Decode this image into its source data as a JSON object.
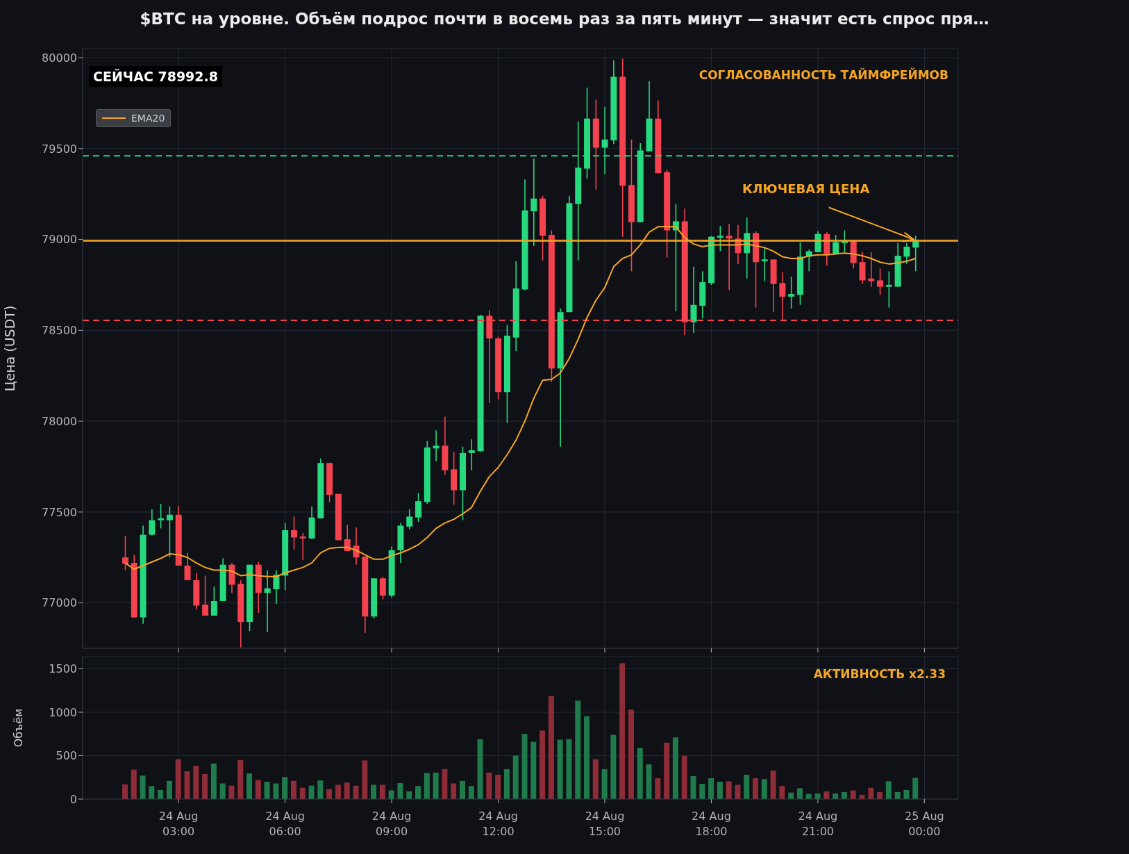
{
  "chart_data": [
    {
      "type": "candlestick",
      "title": "$BTC на уровне. Объём подрос почти в восемь раз за пять минут — значит есть спрос пря…",
      "ylabel": "Цена (USDT)",
      "x": [
        "--08-24T01:30",
        "--08-24T01:45",
        "--08-24T02:00",
        "--08-24T02:15",
        "--08-24T02:30",
        "--08-24T02:45",
        "--08-24T03:00",
        "--08-24T03:15",
        "--08-24T03:30",
        "--08-24T03:45",
        "--08-24T04:00",
        "--08-24T04:15",
        "--08-24T04:30",
        "--08-24T04:45",
        "--08-24T05:00",
        "--08-24T05:15",
        "--08-24T05:30",
        "--08-24T05:45",
        "--08-24T06:00",
        "--08-24T06:15",
        "--08-24T06:30",
        "--08-24T06:45",
        "--08-24T07:00",
        "--08-24T07:15",
        "--08-24T07:30",
        "--08-24T07:45",
        "--08-24T08:00",
        "--08-24T08:15",
        "--08-24T08:30",
        "--08-24T08:45",
        "--08-24T09:00",
        "--08-24T09:15",
        "--08-24T09:30",
        "--08-24T09:45",
        "--08-24T10:00",
        "--08-24T10:15",
        "--08-24T10:30",
        "--08-24T10:45",
        "--08-24T11:00",
        "--08-24T11:15",
        "--08-24T11:30",
        "--08-24T11:45",
        "--08-24T12:00",
        "--08-24T12:15",
        "--08-24T12:30",
        "--08-24T12:45",
        "--08-24T13:00",
        "--08-24T13:15",
        "--08-24T13:30",
        "--08-24T13:45",
        "--08-24T14:00",
        "--08-24T14:15",
        "--08-24T14:30",
        "--08-24T14:45",
        "--08-24T15:00",
        "--08-24T15:15",
        "--08-24T15:30",
        "--08-24T15:45",
        "--08-24T16:00",
        "--08-24T16:15",
        "--08-24T16:30",
        "--08-24T16:45",
        "--08-24T17:00",
        "--08-24T17:15",
        "--08-24T17:30",
        "--08-24T17:45",
        "--08-24T18:00",
        "--08-24T18:15",
        "--08-24T18:30",
        "--08-24T18:45",
        "--08-24T19:00",
        "--08-24T19:15",
        "--08-24T19:30",
        "--08-24T19:45",
        "--08-24T20:00",
        "--08-24T20:15",
        "--08-24T20:30",
        "--08-24T20:45",
        "--08-24T21:00",
        "--08-24T21:15",
        "--08-24T21:30",
        "--08-24T21:45",
        "--08-24T22:00",
        "--08-24T22:15",
        "--08-24T22:30",
        "--08-24T22:45",
        "--08-24T23:00",
        "--08-24T23:15",
        "--08-24T23:30",
        "--08-24T23:45"
      ],
      "xlim": [
        "--08-24T00:18",
        "--08-25T00:57"
      ],
      "xticks": [
        {
          "value": "--08-24T03:00",
          "label": null
        },
        {
          "value": "--08-24T06:00",
          "label": null
        },
        {
          "value": "--08-24T09:00",
          "label": null
        },
        {
          "value": "--08-24T12:00",
          "label": null
        },
        {
          "value": "--08-24T15:00",
          "label": null
        },
        {
          "value": "--08-24T18:00",
          "label": null
        },
        {
          "value": "--08-24T21:00",
          "label": null
        },
        {
          "value": "--08-25T00:00",
          "label": null
        }
      ],
      "ylim": [
        76750,
        80050
      ],
      "yticks": [
        77000,
        77500,
        78000,
        78500,
        79000,
        79500,
        80000
      ],
      "tick_labels": "y",
      "grid": true,
      "legend": "top left",
      "ref_lines": [
        {
          "axis": "y",
          "value": 79460,
          "label": null,
          "color": "#26d97f",
          "line_style": "dashed"
        },
        {
          "axis": "y",
          "value": 78555,
          "label": null,
          "color": "#f5424f",
          "line_style": "dashed"
        },
        {
          "axis": "y",
          "value": 78992.8,
          "label": null,
          "color": "#f5a623",
          "line_style": "solid"
        }
      ],
      "annotations": [
        "СЕЙЧАС 78992.8",
        "СОГЛАСОВАННОСТЬ ТАЙМФРЕЙМОВ",
        {
          "text": "КЛЮЧЕВАЯ ЦЕНА",
          "x": "--08-24T23:45",
          "y": 78992.8
        }
      ],
      "series": [
        {
          "type": "candlestick",
          "ohlc": [
            [
              77250,
              77370,
              77180,
              77215
            ],
            [
              77220,
              77265,
              76920,
              76920
            ],
            [
              76920,
              77425,
              76885,
              77375
            ],
            [
              77375,
              77515,
              77370,
              77455
            ],
            [
              77455,
              77545,
              77410,
              77465
            ],
            [
              77455,
              77530,
              77250,
              77485
            ],
            [
              77485,
              77535,
              77205,
              77205
            ],
            [
              77205,
              77275,
              77125,
              77125
            ],
            [
              77125,
              77165,
              76965,
              76985
            ],
            [
              76990,
              77150,
              76930,
              76930
            ],
            [
              76930,
              77090,
              76930,
              77010
            ],
            [
              77010,
              77245,
              77010,
              77210
            ],
            [
              77210,
              77220,
              77055,
              77100
            ],
            [
              77105,
              77125,
              76755,
              76895
            ],
            [
              76895,
              77210,
              76845,
              77210
            ],
            [
              77210,
              77225,
              76945,
              77055
            ],
            [
              77055,
              77180,
              76840,
              77080
            ],
            [
              77075,
              77180,
              76995,
              77155
            ],
            [
              77150,
              77440,
              77070,
              77400
            ],
            [
              77400,
              77475,
              77295,
              77360
            ],
            [
              77365,
              77385,
              77235,
              77355
            ],
            [
              77355,
              77530,
              77350,
              77470
            ],
            [
              77465,
              77795,
              77465,
              77770
            ],
            [
              77770,
              77770,
              77555,
              77595
            ],
            [
              77600,
              77600,
              77345,
              77345
            ],
            [
              77350,
              77430,
              77285,
              77285
            ],
            [
              77315,
              77415,
              77210,
              77250
            ],
            [
              77255,
              77255,
              76835,
              76925
            ],
            [
              76925,
              77135,
              76915,
              77135
            ],
            [
              77135,
              77145,
              77020,
              77040
            ],
            [
              77040,
              77310,
              77030,
              77290
            ],
            [
              77290,
              77440,
              77220,
              77425
            ],
            [
              77420,
              77515,
              77405,
              77475
            ],
            [
              77470,
              77605,
              77445,
              77560
            ],
            [
              77555,
              77890,
              77545,
              77855
            ],
            [
              77850,
              77950,
              77780,
              77865
            ],
            [
              77865,
              78025,
              77705,
              77730
            ],
            [
              77735,
              77830,
              77540,
              77620
            ],
            [
              77620,
              77860,
              77455,
              77825
            ],
            [
              77825,
              77900,
              77730,
              77840
            ],
            [
              77835,
              78585,
              77830,
              78580
            ],
            [
              78580,
              78610,
              78100,
              78455
            ],
            [
              78455,
              78465,
              78120,
              78160
            ],
            [
              78160,
              78530,
              77990,
              78470
            ],
            [
              78460,
              78880,
              78385,
              78730
            ],
            [
              78725,
              79330,
              78720,
              79160
            ],
            [
              79155,
              79445,
              78965,
              79225
            ],
            [
              79225,
              79240,
              78885,
              79020
            ],
            [
              79025,
              79050,
              78215,
              78290
            ],
            [
              78290,
              78620,
              77860,
              78600
            ],
            [
              78600,
              79240,
              78600,
              79200
            ],
            [
              79195,
              79650,
              78885,
              79395
            ],
            [
              79390,
              79835,
              79335,
              79665
            ],
            [
              79665,
              79770,
              79275,
              79505
            ],
            [
              79505,
              79730,
              79360,
              79550
            ],
            [
              79545,
              79985,
              79525,
              79895
            ],
            [
              79895,
              79995,
              79015,
              79295
            ],
            [
              79300,
              79550,
              78825,
              79095
            ],
            [
              79095,
              79530,
              79095,
              79490
            ],
            [
              79485,
              79870,
              79485,
              79665
            ],
            [
              79665,
              79765,
              79365,
              79365
            ],
            [
              79370,
              79385,
              78900,
              79050
            ],
            [
              79050,
              79195,
              78605,
              79100
            ],
            [
              79100,
              79170,
              78475,
              78545
            ],
            [
              78545,
              78850,
              78485,
              78640
            ],
            [
              78635,
              78825,
              78565,
              78765
            ],
            [
              78760,
              79020,
              78750,
              79015
            ],
            [
              79010,
              79075,
              78935,
              79020
            ],
            [
              79020,
              79085,
              78720,
              79005
            ],
            [
              79005,
              79080,
              78865,
              78925
            ],
            [
              78925,
              79120,
              78785,
              79035
            ],
            [
              79035,
              79045,
              78625,
              78875
            ],
            [
              78880,
              78955,
              78770,
              78890
            ],
            [
              78890,
              78890,
              78600,
              78755
            ],
            [
              78760,
              78820,
              78560,
              78685
            ],
            [
              78685,
              78795,
              78620,
              78700
            ],
            [
              78695,
              78985,
              78640,
              78905
            ],
            [
              78905,
              78945,
              78825,
              78935
            ],
            [
              78930,
              79045,
              78930,
              79030
            ],
            [
              79030,
              79040,
              78855,
              78920
            ],
            [
              78920,
              79025,
              78920,
              78985
            ],
            [
              78980,
              79050,
              78930,
              78990
            ],
            [
              78990,
              78990,
              78840,
              78870
            ],
            [
              78875,
              78930,
              78755,
              78775
            ],
            [
              78785,
              78930,
              78740,
              78770
            ],
            [
              78775,
              78840,
              78695,
              78740
            ],
            [
              78740,
              78825,
              78625,
              78750
            ],
            [
              78740,
              78980,
              78740,
              78910
            ],
            [
              78905,
              78980,
              78865,
              78960
            ],
            [
              78955,
              79020,
              78825,
              78990
            ]
          ],
          "colors": [
            "#f5424f",
            "#f5424f",
            "#26d97f",
            "#26d97f",
            "#26d97f",
            "#26d97f",
            "#f5424f",
            "#f5424f",
            "#f5424f",
            "#f5424f",
            "#26d97f",
            "#26d97f",
            "#f5424f",
            "#f5424f",
            "#26d97f",
            "#f5424f",
            "#26d97f",
            "#26d97f",
            "#26d97f",
            "#f5424f",
            "#f5424f",
            "#26d97f",
            "#26d97f",
            "#f5424f",
            "#f5424f",
            "#f5424f",
            "#f5424f",
            "#f5424f",
            "#26d97f",
            "#f5424f",
            "#26d97f",
            "#26d97f",
            "#26d97f",
            "#26d97f",
            "#26d97f",
            "#26d97f",
            "#f5424f",
            "#f5424f",
            "#26d97f",
            "#26d97f",
            "#26d97f",
            "#f5424f",
            "#f5424f",
            "#26d97f",
            "#26d97f",
            "#26d97f",
            "#26d97f",
            "#f5424f",
            "#f5424f",
            "#26d97f",
            "#26d97f",
            "#26d97f",
            "#26d97f",
            "#f5424f",
            "#26d97f",
            "#26d97f",
            "#f5424f",
            "#f5424f",
            "#26d97f",
            "#26d97f",
            "#f5424f",
            "#f5424f",
            "#26d97f",
            "#f5424f",
            "#26d97f",
            "#26d97f",
            "#26d97f",
            "#26d97f",
            "#f5424f",
            "#f5424f",
            "#26d97f",
            "#f5424f",
            "#26d97f",
            "#f5424f",
            "#f5424f",
            "#26d97f",
            "#26d97f",
            "#26d97f",
            "#26d97f",
            "#f5424f",
            "#26d97f",
            "#26d97f",
            "#f5424f",
            "#f5424f",
            "#f5424f",
            "#f5424f",
            "#26d97f",
            "#26d97f",
            "#26d97f",
            "#26d97f"
          ]
        },
        {
          "type": "line",
          "name": "EMA20",
          "color": "#f5a623",
          "values": [
            77220,
            77185,
            77205,
            77225,
            77245,
            77270,
            77265,
            77250,
            77220,
            77195,
            77180,
            77180,
            77175,
            77150,
            77155,
            77150,
            77145,
            77145,
            77165,
            77180,
            77195,
            77220,
            77275,
            77300,
            77305,
            77305,
            77290,
            77265,
            77240,
            77240,
            77260,
            77275,
            77295,
            77320,
            77360,
            77410,
            77440,
            77460,
            77490,
            77525,
            77615,
            77695,
            77745,
            77815,
            77895,
            78000,
            78125,
            78225,
            78230,
            78265,
            78345,
            78450,
            78570,
            78665,
            78735,
            78850,
            78895,
            78915,
            78970,
            79040,
            79070,
            79070,
            79070,
            79010,
            78975,
            78960,
            78970,
            78970,
            78970,
            78970,
            78975,
            78965,
            78955,
            78935,
            78905,
            78895,
            78895,
            78910,
            78915,
            78915,
            78920,
            78925,
            78920,
            78910,
            78895,
            78875,
            78865,
            78870,
            78880,
            78895
          ]
        }
      ]
    },
    {
      "type": "bar",
      "ylabel": "Объём",
      "x": [
        "--08-24T01:30",
        "--08-24T01:45",
        "--08-24T02:00",
        "--08-24T02:15",
        "--08-24T02:30",
        "--08-24T02:45",
        "--08-24T03:00",
        "--08-24T03:15",
        "--08-24T03:30",
        "--08-24T03:45",
        "--08-24T04:00",
        "--08-24T04:15",
        "--08-24T04:30",
        "--08-24T04:45",
        "--08-24T05:00",
        "--08-24T05:15",
        "--08-24T05:30",
        "--08-24T05:45",
        "--08-24T06:00",
        "--08-24T06:15",
        "--08-24T06:30",
        "--08-24T06:45",
        "--08-24T07:00",
        "--08-24T07:15",
        "--08-24T07:30",
        "--08-24T07:45",
        "--08-24T08:00",
        "--08-24T08:15",
        "--08-24T08:30",
        "--08-24T08:45",
        "--08-24T09:00",
        "--08-24T09:15",
        "--08-24T09:30",
        "--08-24T09:45",
        "--08-24T10:00",
        "--08-24T10:15",
        "--08-24T10:30",
        "--08-24T10:45",
        "--08-24T11:00",
        "--08-24T11:15",
        "--08-24T11:30",
        "--08-24T11:45",
        "--08-24T12:00",
        "--08-24T12:15",
        "--08-24T12:30",
        "--08-24T12:45",
        "--08-24T13:00",
        "--08-24T13:15",
        "--08-24T13:30",
        "--08-24T13:45",
        "--08-24T14:00",
        "--08-24T14:15",
        "--08-24T14:30",
        "--08-24T14:45",
        "--08-24T15:00",
        "--08-24T15:15",
        "--08-24T15:30",
        "--08-24T15:45",
        "--08-24T16:00",
        "--08-24T16:15",
        "--08-24T16:30",
        "--08-24T16:45",
        "--08-24T17:00",
        "--08-24T17:15",
        "--08-24T17:30",
        "--08-24T17:45",
        "--08-24T18:00",
        "--08-24T18:15",
        "--08-24T18:30",
        "--08-24T18:45",
        "--08-24T19:00",
        "--08-24T19:15",
        "--08-24T19:30",
        "--08-24T19:45",
        "--08-24T20:00",
        "--08-24T20:15",
        "--08-24T20:30",
        "--08-24T20:45",
        "--08-24T21:00",
        "--08-24T21:15",
        "--08-24T21:30",
        "--08-24T21:45",
        "--08-24T22:00",
        "--08-24T22:15",
        "--08-24T22:30",
        "--08-24T22:45",
        "--08-24T23:00",
        "--08-24T23:15",
        "--08-24T23:30",
        "--08-24T23:45"
      ],
      "values": [
        170,
        340,
        270,
        150,
        105,
        210,
        460,
        320,
        385,
        290,
        410,
        180,
        155,
        450,
        295,
        220,
        200,
        180,
        255,
        210,
        130,
        155,
        215,
        115,
        165,
        190,
        155,
        445,
        165,
        165,
        100,
        185,
        90,
        150,
        300,
        305,
        345,
        180,
        210,
        150,
        690,
        305,
        280,
        345,
        500,
        750,
        660,
        790,
        1185,
        685,
        690,
        1135,
        955,
        460,
        345,
        740,
        1565,
        1030,
        590,
        400,
        240,
        650,
        710,
        500,
        265,
        175,
        240,
        200,
        205,
        165,
        280,
        240,
        230,
        330,
        150,
        75,
        125,
        60,
        65,
        90,
        65,
        80,
        100,
        50,
        130,
        80,
        205,
        80,
        105,
        245
      ],
      "colors": [
        "#8e2c38",
        "#8e2c38",
        "#1f7a4c",
        "#1f7a4c",
        "#1f7a4c",
        "#1f7a4c",
        "#8e2c38",
        "#8e2c38",
        "#8e2c38",
        "#8e2c38",
        "#1f7a4c",
        "#1f7a4c",
        "#8e2c38",
        "#8e2c38",
        "#1f7a4c",
        "#8e2c38",
        "#1f7a4c",
        "#1f7a4c",
        "#1f7a4c",
        "#8e2c38",
        "#8e2c38",
        "#1f7a4c",
        "#1f7a4c",
        "#8e2c38",
        "#8e2c38",
        "#8e2c38",
        "#8e2c38",
        "#8e2c38",
        "#1f7a4c",
        "#8e2c38",
        "#1f7a4c",
        "#1f7a4c",
        "#1f7a4c",
        "#1f7a4c",
        "#1f7a4c",
        "#1f7a4c",
        "#8e2c38",
        "#8e2c38",
        "#1f7a4c",
        "#1f7a4c",
        "#1f7a4c",
        "#8e2c38",
        "#8e2c38",
        "#1f7a4c",
        "#1f7a4c",
        "#1f7a4c",
        "#1f7a4c",
        "#8e2c38",
        "#8e2c38",
        "#1f7a4c",
        "#1f7a4c",
        "#1f7a4c",
        "#1f7a4c",
        "#8e2c38",
        "#1f7a4c",
        "#1f7a4c",
        "#8e2c38",
        "#8e2c38",
        "#1f7a4c",
        "#1f7a4c",
        "#8e2c38",
        "#8e2c38",
        "#1f7a4c",
        "#8e2c38",
        "#1f7a4c",
        "#1f7a4c",
        "#1f7a4c",
        "#1f7a4c",
        "#8e2c38",
        "#8e2c38",
        "#1f7a4c",
        "#8e2c38",
        "#1f7a4c",
        "#8e2c38",
        "#8e2c38",
        "#1f7a4c",
        "#1f7a4c",
        "#1f7a4c",
        "#1f7a4c",
        "#8e2c38",
        "#1f7a4c",
        "#1f7a4c",
        "#8e2c38",
        "#8e2c38",
        "#8e2c38",
        "#8e2c38",
        "#1f7a4c",
        "#1f7a4c",
        "#1f7a4c",
        "#1f7a4c"
      ],
      "xlim": [
        "--08-24T00:18",
        "--08-25T00:57"
      ],
      "xticks": [
        {
          "value": "--08-24T03:00",
          "label": "24 Aug\n03:00"
        },
        {
          "value": "--08-24T06:00",
          "label": "24 Aug\n06:00"
        },
        {
          "value": "--08-24T09:00",
          "label": "24 Aug\n09:00"
        },
        {
          "value": "--08-24T12:00",
          "label": "24 Aug\n12:00"
        },
        {
          "value": "--08-24T15:00",
          "label": "24 Aug\n15:00"
        },
        {
          "value": "--08-24T18:00",
          "label": "24 Aug\n18:00"
        },
        {
          "value": "--08-24T21:00",
          "label": "24 Aug\n21:00"
        },
        {
          "value": "--08-25T00:00",
          "label": "25 Aug\n00:00"
        }
      ],
      "ylim": [
        0,
        1640
      ],
      "yticks": [
        0,
        500,
        1000,
        1500
      ],
      "grid": true,
      "annotations": [
        "АКТИВНОСТЬ x2.33"
      ]
    }
  ]
}
